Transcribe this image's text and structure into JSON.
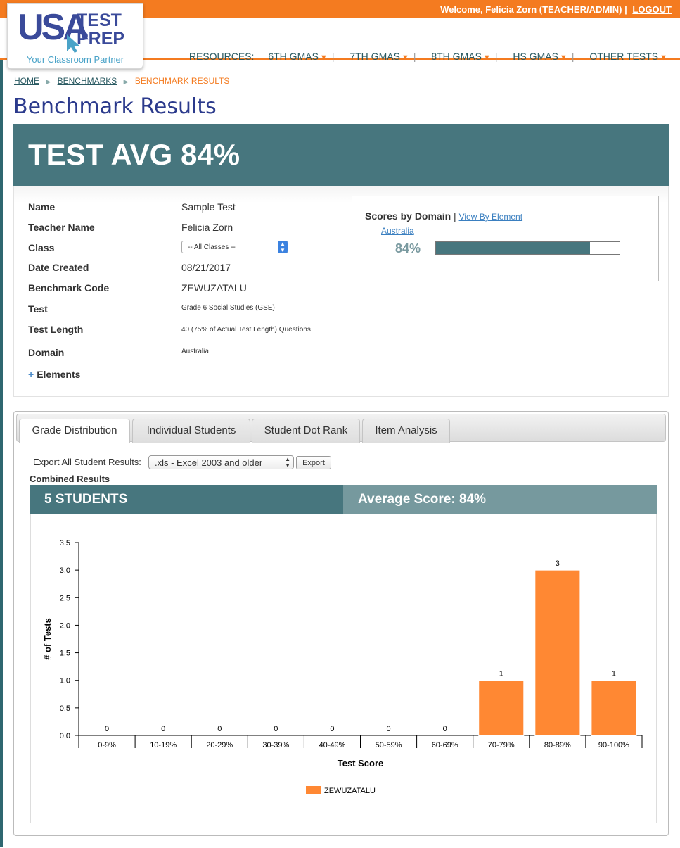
{
  "topbar": {
    "welcome": "Welcome, Felicia Zorn (TEACHER/ADMIN)",
    "separator": "|",
    "logout": "LOGOUT"
  },
  "logo": {
    "usa": "USA",
    "test": "TEST",
    "prep": "PREP",
    "tagline": "Your Classroom Partner"
  },
  "nav": {
    "resources_label": "RESOURCES:",
    "items": [
      "6TH GMAS",
      "7TH GMAS",
      "8TH GMAS",
      "HS GMAS",
      "OTHER TESTS"
    ]
  },
  "breadcrumb": [
    "HOME",
    "BENCHMARKS",
    "BENCHMARK RESULTS"
  ],
  "page_title": "Benchmark Results",
  "test_avg": "TEST AVG 84%",
  "details": {
    "name_label": "Name",
    "name_value": "Sample Test",
    "teacher_label": "Teacher Name",
    "teacher_value": "Felicia Zorn",
    "class_label": "Class",
    "class_value": "-- All Classes --",
    "date_label": "Date Created",
    "date_value": "08/21/2017",
    "code_label": "Benchmark Code",
    "code_value": "ZEWUZATALU",
    "test_label": "Test",
    "test_value": "Grade 6 Social Studies (GSE)",
    "length_label": "Test Length",
    "length_value": "40 (75% of Actual Test Length) Questions",
    "domain_label": "Domain",
    "domain_value": "Australia",
    "elements_toggle": "Elements"
  },
  "domain_scores": {
    "heading": "Scores by Domain",
    "separator": "|",
    "view_by_element": "View By Element",
    "domain_name": "Australia",
    "percent_text": "84%",
    "percent": 84
  },
  "tabs": [
    "Grade Distribution",
    "Individual Students",
    "Student Dot Rank",
    "Item Analysis"
  ],
  "export": {
    "label": "Export All Student Results:",
    "format": ".xls - Excel 2003 and older",
    "button": "Export"
  },
  "combined_results": "Combined Results",
  "stats": {
    "students": "5 STUDENTS",
    "average": "Average Score: 84%"
  },
  "chart_data": {
    "type": "bar",
    "categories": [
      "0-9%",
      "10-19%",
      "20-29%",
      "30-39%",
      "40-49%",
      "50-59%",
      "60-69%",
      "70-79%",
      "80-89%",
      "90-100%"
    ],
    "series": [
      {
        "name": "ZEWUZATALU",
        "values": [
          0,
          0,
          0,
          0,
          0,
          0,
          0,
          1,
          3,
          1
        ]
      }
    ],
    "xlabel": "Test Score",
    "ylabel": "# of Tests",
    "ylim": [
      0,
      3.5
    ],
    "yticks": [
      "0.0",
      "0.5",
      "1.0",
      "1.5",
      "2.0",
      "2.5",
      "3.0",
      "3.5"
    ],
    "legend": "bottom-center",
    "grid": false,
    "bar_color": "#ff8833"
  }
}
